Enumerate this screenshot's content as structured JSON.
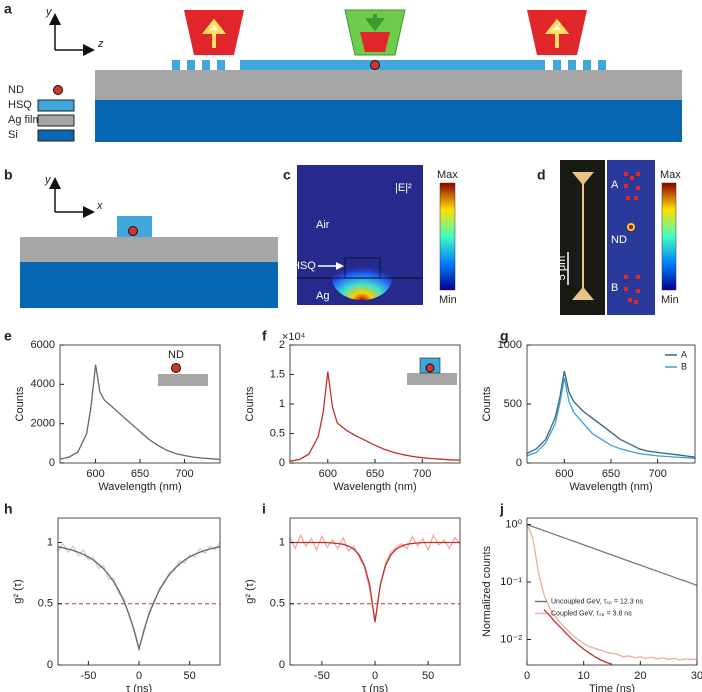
{
  "panel_labels": [
    "a",
    "b",
    "c",
    "d",
    "e",
    "f",
    "g",
    "h",
    "i",
    "j"
  ],
  "diagrams": {
    "a": {
      "axis_y": "y",
      "axis_z": "z",
      "legend": [
        "ND",
        "HSQ",
        "Ag film",
        "Si"
      ]
    },
    "b": {
      "axis_y": "y",
      "axis_x": "x"
    },
    "c": {
      "field_label": "|E|²",
      "max": "Max",
      "min": "Min",
      "regions": [
        "Air",
        "HSQ",
        "Ag"
      ]
    },
    "d": {
      "labels": [
        "A",
        "ND",
        "B"
      ],
      "scale": "5 μm",
      "max": "Max",
      "min": "Min"
    }
  },
  "chart_data": [
    {
      "type": "line",
      "xlabel": "Wavelength (nm)",
      "ylabel": "Counts",
      "inset_label": "ND",
      "x": [
        560,
        570,
        580,
        590,
        595,
        600,
        605,
        610,
        620,
        630,
        640,
        650,
        660,
        670,
        680,
        690,
        700,
        710,
        720,
        730,
        740
      ],
      "xlim": [
        560,
        740
      ],
      "xticks": [
        600,
        650,
        700
      ],
      "ylim": [
        0,
        6000
      ],
      "yticks": [
        0,
        2000,
        4000,
        6000
      ],
      "series": [
        {
          "color": "#666666",
          "values": [
            200,
            300,
            550,
            1500,
            2900,
            5000,
            3600,
            3200,
            2800,
            2400,
            2000,
            1600,
            1200,
            900,
            650,
            480,
            380,
            300,
            250,
            220,
            180
          ]
        }
      ]
    },
    {
      "type": "line",
      "xlabel": "Wavelength (nm)",
      "ylabel": "Counts",
      "y_multiplier_label": "×10⁴",
      "x": [
        560,
        570,
        580,
        590,
        595,
        600,
        605,
        610,
        620,
        630,
        640,
        650,
        660,
        670,
        680,
        690,
        700,
        710,
        720,
        730,
        740
      ],
      "xlim": [
        560,
        740
      ],
      "xticks": [
        600,
        650,
        700
      ],
      "ylim": [
        0,
        20000
      ],
      "yticks": [
        0,
        {
          "value": 5000,
          "label": "0.5"
        },
        {
          "value": 10000,
          "label": "1"
        },
        {
          "value": 15000,
          "label": "1.5"
        },
        {
          "value": 20000,
          "label": "2"
        }
      ],
      "series": [
        {
          "color": "#c0302a",
          "values": [
            300,
            600,
            1500,
            4500,
            8500,
            15500,
            9500,
            6800,
            5500,
            4600,
            3800,
            3000,
            2300,
            1800,
            1400,
            1100,
            900,
            750,
            650,
            550,
            500
          ]
        }
      ]
    },
    {
      "type": "line",
      "xlabel": "Wavelength (nm)",
      "ylabel": "Counts",
      "legend": "upper right",
      "x": [
        560,
        570,
        580,
        590,
        595,
        600,
        605,
        610,
        620,
        630,
        640,
        650,
        660,
        670,
        680,
        690,
        700,
        710,
        720,
        730,
        740
      ],
      "xlim": [
        560,
        740
      ],
      "xticks": [
        600,
        650,
        700
      ],
      "ylim": [
        0,
        1000
      ],
      "yticks": [
        0,
        500,
        1000
      ],
      "series": [
        {
          "name": "A",
          "color": "#2d6b7a",
          "values": [
            80,
            120,
            200,
            380,
            550,
            780,
            600,
            520,
            440,
            380,
            320,
            260,
            200,
            160,
            120,
            100,
            90,
            80,
            70,
            60,
            50
          ]
        },
        {
          "name": "B",
          "color": "#3a9fd8",
          "values": [
            60,
            90,
            170,
            330,
            500,
            720,
            520,
            430,
            340,
            250,
            200,
            150,
            120,
            100,
            80,
            70,
            60,
            55,
            50,
            45,
            40
          ]
        }
      ]
    },
    {
      "type": "line",
      "xlabel": "τ (ns)",
      "ylabel": "g² (τ)",
      "hline": 0.5,
      "hline_color": "#c0302a",
      "x": [
        -80,
        -75,
        -70,
        -65,
        -60,
        -55,
        -50,
        -45,
        -40,
        -35,
        -30,
        -25,
        -20,
        -15,
        -10,
        -5,
        0,
        5,
        10,
        15,
        20,
        25,
        30,
        35,
        40,
        45,
        50,
        55,
        60,
        65,
        70,
        75,
        80
      ],
      "xlim": [
        -80,
        80
      ],
      "xticks": [
        -50,
        0,
        50
      ],
      "ylim": [
        0,
        1.2
      ],
      "yticks": [
        0,
        0.5,
        1
      ],
      "series": [
        {
          "color": "#cfcfcf",
          "values": [
            0.93,
            0.99,
            0.92,
            0.97,
            0.89,
            0.94,
            0.86,
            0.88,
            0.79,
            0.81,
            0.7,
            0.71,
            0.58,
            0.55,
            0.4,
            0.3,
            0.14,
            0.27,
            0.44,
            0.5,
            0.63,
            0.66,
            0.76,
            0.77,
            0.85,
            0.83,
            0.9,
            0.88,
            0.95,
            0.91,
            0.97,
            0.94,
            1.0
          ]
        },
        {
          "color": "#666666",
          "values": [
            0.965,
            0.957,
            0.947,
            0.935,
            0.921,
            0.904,
            0.882,
            0.856,
            0.824,
            0.785,
            0.738,
            0.68,
            0.609,
            0.522,
            0.417,
            0.288,
            0.13,
            0.288,
            0.417,
            0.522,
            0.609,
            0.68,
            0.738,
            0.785,
            0.824,
            0.856,
            0.882,
            0.904,
            0.921,
            0.935,
            0.947,
            0.957,
            0.965
          ]
        }
      ]
    },
    {
      "type": "line",
      "xlabel": "τ (ns)",
      "ylabel": "g² (τ)",
      "hline": 0.5,
      "hline_color": "#c0302a",
      "x": [
        -80,
        -75,
        -70,
        -65,
        -60,
        -55,
        -50,
        -45,
        -40,
        -35,
        -30,
        -25,
        -20,
        -15,
        -10,
        -5,
        0,
        5,
        10,
        15,
        20,
        25,
        30,
        35,
        40,
        45,
        50,
        55,
        60,
        65,
        70,
        75,
        80
      ],
      "xlim": [
        -80,
        80
      ],
      "xticks": [
        -50,
        0,
        50
      ],
      "ylim": [
        0,
        1.2
      ],
      "yticks": [
        0,
        0.5,
        1
      ],
      "series": [
        {
          "color": "#f4a9a0",
          "values": [
            1.04,
            0.95,
            1.06,
            0.97,
            1.03,
            0.94,
            1.05,
            0.96,
            1.02,
            0.95,
            1.04,
            0.93,
            0.97,
            0.88,
            0.8,
            0.62,
            0.36,
            0.66,
            0.83,
            0.92,
            0.96,
            0.99,
            0.95,
            1.05,
            0.97,
            1.03,
            0.94,
            1.06,
            0.98,
            1.02,
            0.95,
            1.04,
            0.99
          ]
        },
        {
          "color": "#c0302a",
          "values": [
            1,
            1,
            1,
            1,
            1,
            1,
            1,
            0.999,
            0.996,
            0.992,
            0.985,
            0.971,
            0.947,
            0.9,
            0.814,
            0.652,
            0.35,
            0.652,
            0.814,
            0.9,
            0.947,
            0.971,
            0.985,
            0.992,
            0.996,
            0.999,
            1,
            1,
            1,
            1,
            1,
            1,
            1
          ]
        }
      ]
    },
    {
      "type": "line",
      "xlabel": "Time (ns)",
      "ylabel": "Normalized counts",
      "log_y": true,
      "legend": "center",
      "x": [
        0,
        1,
        2,
        3,
        4,
        5,
        6,
        7,
        8,
        9,
        10,
        11,
        12,
        13,
        14,
        15,
        16,
        17,
        18,
        19,
        20,
        21,
        22,
        23,
        24,
        25,
        26,
        27,
        28,
        29,
        30
      ],
      "xlim": [
        0,
        30
      ],
      "xticks": [
        0,
        10,
        20,
        30
      ],
      "ylim": [
        0.0036,
        1.3
      ],
      "yticks": [
        {
          "value": 0.01,
          "label": "10⁻²"
        },
        {
          "value": 0.1,
          "label": "10⁻¹"
        },
        {
          "value": 1,
          "label": "10⁰"
        }
      ],
      "series": [
        {
          "name": "Uncoupled GeV, τₛₚ = 12.3 ns",
          "color": "#7a7a7a",
          "values": [
            1,
            0.922,
            0.85,
            0.784,
            0.722,
            0.666,
            0.614,
            0.566,
            0.522,
            0.481,
            0.443,
            0.409,
            0.377,
            0.347,
            0.32,
            0.295,
            0.272,
            0.251,
            0.231,
            0.213,
            0.197,
            0.181,
            0.167,
            0.154,
            0.142,
            0.131,
            0.121,
            0.111,
            0.103,
            0.095,
            0.087
          ]
        },
        {
          "name": "Coupled GeV, τₛₚ = 3.8 ns",
          "color": "#f4a9a0",
          "values": [
            1,
            0.6,
            0.15,
            0.06,
            0.035,
            0.025,
            0.019,
            0.015,
            0.012,
            0.01,
            0.0085,
            0.0075,
            0.007,
            0.0065,
            0.006,
            0.0058,
            0.0055,
            0.005,
            0.0052,
            0.0048,
            0.005,
            0.0047,
            0.0049,
            0.0046,
            0.0048,
            0.0045,
            0.0047,
            0.0044,
            0.0046,
            0.0045,
            0.0045
          ]
        },
        {
          "color": "#c0302a",
          "values": [
            null,
            null,
            null,
            0.033,
            0.026,
            0.02,
            0.016,
            0.0125,
            0.01,
            0.0082,
            0.0068,
            0.0058,
            0.005,
            0.0044,
            0.004,
            0.0037,
            null,
            null,
            null,
            null,
            null,
            null,
            null,
            null,
            null,
            null,
            null,
            null,
            null,
            null,
            null
          ]
        }
      ]
    }
  ]
}
